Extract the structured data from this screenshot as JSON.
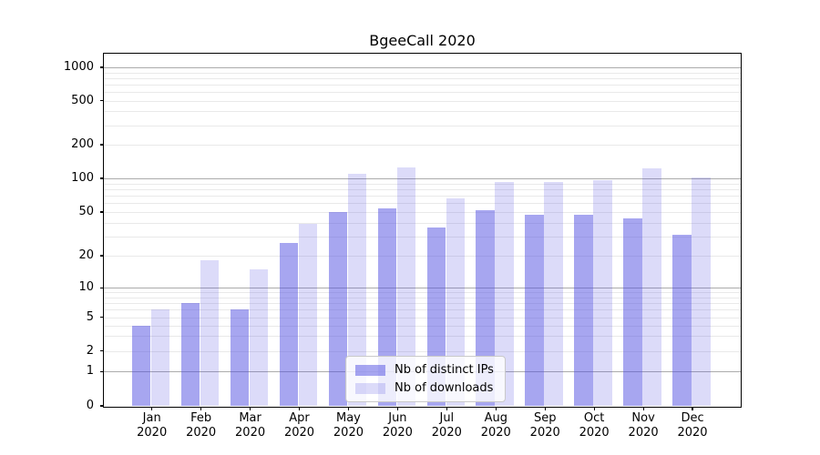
{
  "chart_data": {
    "type": "bar",
    "title": "BgeeCall 2020",
    "categories": [
      "Jan",
      "Feb",
      "Mar",
      "Apr",
      "May",
      "Jun",
      "Jul",
      "Aug",
      "Sep",
      "Oct",
      "Nov",
      "Dec"
    ],
    "x_second_line": "2020",
    "series": [
      {
        "name": "Nb of distinct IPs",
        "color": "rgba(80,77,225,0.5)",
        "values": [
          4,
          7,
          6,
          26,
          50,
          54,
          36,
          52,
          47,
          47,
          44,
          31
        ]
      },
      {
        "name": "Nb of downloads",
        "color": "rgba(80,77,225,0.2)",
        "values": [
          6,
          18,
          15,
          39,
          110,
          125,
          66,
          92,
          93,
          97,
          123,
          102
        ]
      }
    ],
    "y_axis": {
      "scale": "symlog",
      "tick_values": [
        0,
        1,
        2,
        5,
        10,
        20,
        50,
        100,
        200,
        500,
        1000
      ],
      "tick_labels": [
        "0",
        "1",
        "2",
        "5",
        "10",
        "20",
        "50",
        "100",
        "200",
        "500",
        "1000"
      ],
      "anchors": [
        [
          0,
          0
        ],
        [
          1,
          0.0977
        ],
        [
          2,
          0.1562
        ],
        [
          5,
          0.2521
        ],
        [
          10,
          0.3355
        ],
        [
          20,
          0.4275
        ],
        [
          50,
          0.5518
        ],
        [
          100,
          0.6477
        ],
        [
          200,
          0.7435
        ],
        [
          500,
          0.8687
        ],
        [
          1000,
          0.9637
        ]
      ]
    },
    "grid": {
      "major_values": [
        1,
        10,
        100,
        1000
      ],
      "minor_decades": [
        1,
        10,
        100
      ],
      "minor_multiples": [
        2,
        3,
        4,
        5,
        6,
        7,
        8,
        9
      ],
      "major_color": "#ababab",
      "minor_color": "#e9e9e9"
    },
    "legend": {
      "position": "lower center"
    },
    "colors": {
      "background": "#ffffff",
      "axis": "#000000",
      "text": "#000000"
    }
  }
}
